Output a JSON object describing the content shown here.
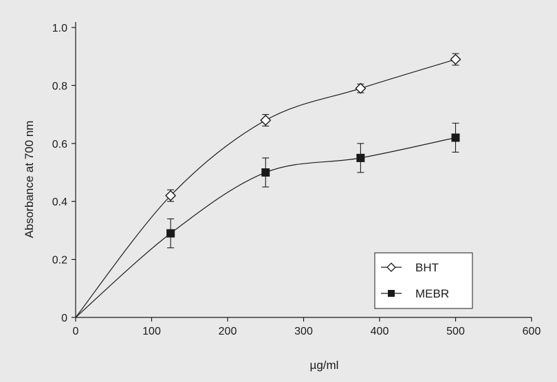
{
  "chart_data": {
    "type": "line",
    "xlabel": "µg/ml",
    "ylabel": "Absorbance at 700 nm",
    "xlim": [
      0,
      600
    ],
    "ylim": [
      0,
      1.0
    ],
    "x_ticks": [
      0,
      100,
      200,
      300,
      400,
      500,
      600
    ],
    "x_tick_labels": [
      "0",
      "100",
      "200",
      "300",
      "400",
      "500",
      "600"
    ],
    "y_ticks": [
      0,
      0.2,
      0.4,
      0.6,
      0.8,
      1.0
    ],
    "y_tick_labels": [
      "0",
      "0.2",
      "0.4",
      "0.6",
      "0.8",
      "1.0"
    ],
    "grid": false,
    "legend_position": "bottom-right",
    "x": [
      0,
      125,
      250,
      375,
      500
    ],
    "series": [
      {
        "name": "BHT",
        "marker": "open-diamond",
        "color": "#1a1a1a",
        "values": [
          0,
          0.42,
          0.68,
          0.79,
          0.89
        ],
        "errors": [
          0,
          0.02,
          0.02,
          0.015,
          0.02
        ]
      },
      {
        "name": "MEBR",
        "marker": "filled-square",
        "color": "#1a1a1a",
        "values": [
          0,
          0.29,
          0.5,
          0.55,
          0.62
        ],
        "errors": [
          0,
          0.05,
          0.05,
          0.05,
          0.05
        ]
      }
    ]
  }
}
